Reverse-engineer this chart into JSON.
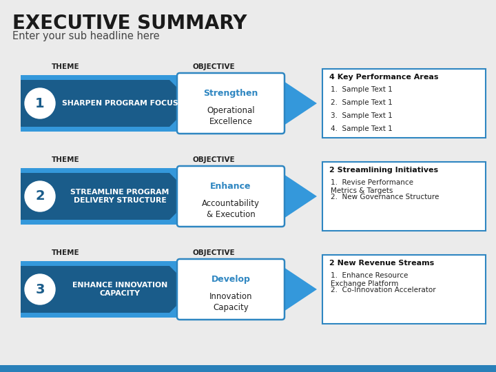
{
  "title": "EXECUTIVE SUMMARY",
  "subtitle": "Enter your sub headline here",
  "background_color": "#ebebeb",
  "title_color": "#1a1a1a",
  "subtitle_color": "#444444",
  "dark_blue": "#1a5c8a",
  "mid_blue": "#2980b9",
  "light_blue": "#3498db",
  "obj_blue": "#2e86c1",
  "rows": [
    {
      "number": "1",
      "theme_text": "SHARPEN PROGRAM FOCUS",
      "objective_highlight": "Strengthen",
      "objective_text": "Operational\nExcellence",
      "box_title": "4 Key Performance Areas",
      "box_items": [
        "Sample Text 1",
        "Sample Text 1",
        "Sample Text 1",
        "Sample Text 1"
      ]
    },
    {
      "number": "2",
      "theme_text": "STREAMLINE PROGRAM\nDELIVERY STRUCTURE",
      "objective_highlight": "Enhance",
      "objective_text": "Accountability\n& Execution",
      "box_title": "2 Streamlining Initiatives",
      "box_items": [
        "Revise Performance\nMetrics & Targets",
        "New Governance Structure"
      ]
    },
    {
      "number": "3",
      "theme_text": "ENHANCE INNOVATION\nCAPACITY",
      "objective_highlight": "Develop",
      "objective_text": "Innovation\nCapacity",
      "box_title": "2 New Revenue Streams",
      "box_items": [
        "Enhance Resource\nExchange Platform",
        "Co-Innovation Accelerator"
      ]
    }
  ]
}
